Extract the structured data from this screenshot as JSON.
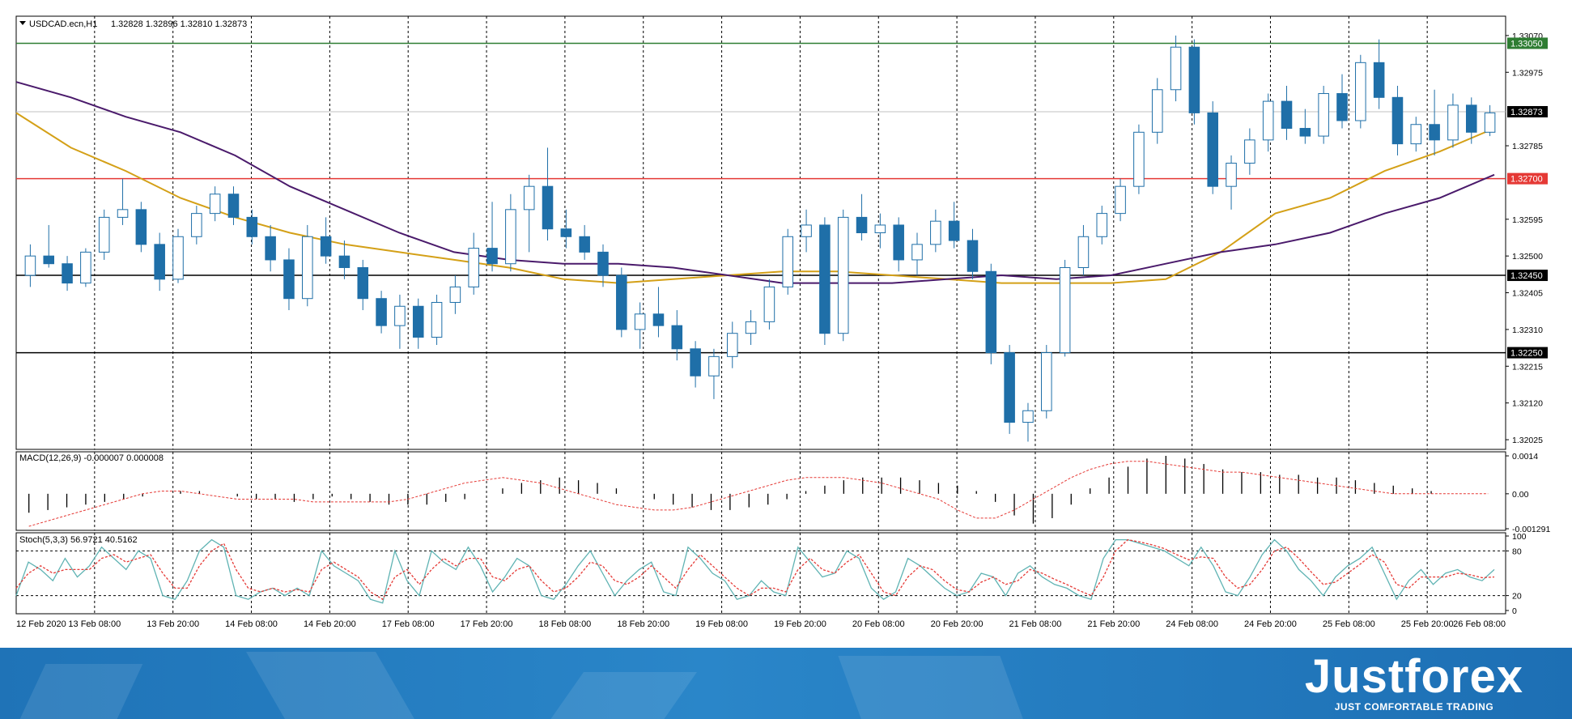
{
  "chart_data": [
    {
      "type": "candlestick",
      "title": "USDCAD.ecn,H1",
      "ohlc_text": "1.32828 1.32896 1.32810 1.32873",
      "ylim": [
        1.32,
        1.3312
      ],
      "y_ticks": [
        "1.33070",
        "1.32975",
        "1.32785",
        "1.32595",
        "1.32500",
        "1.32405",
        "1.32310",
        "1.32215",
        "1.32120",
        "1.32025"
      ],
      "x_tick_labels": [
        "12 Feb 2020",
        "13 Feb 08:00",
        "13 Feb 20:00",
        "14 Feb 08:00",
        "14 Feb 20:00",
        "17 Feb 08:00",
        "17 Feb 20:00",
        "18 Feb 08:00",
        "18 Feb 20:00",
        "19 Feb 08:00",
        "19 Feb 20:00",
        "20 Feb 08:00",
        "20 Feb 20:00",
        "21 Feb 08:00",
        "21 Feb 20:00",
        "24 Feb 08:00",
        "24 Feb 20:00",
        "25 Feb 08:00",
        "25 Feb 20:00",
        "26 Feb 08:00"
      ],
      "levels": [
        {
          "price": 1.3305,
          "label": "1.33050",
          "color": "#2e7d32"
        },
        {
          "price": 1.327,
          "label": "1.32700",
          "color": "#e53935"
        },
        {
          "price": 1.3245,
          "label": "1.32450",
          "color": "#000000"
        },
        {
          "price": 1.3225,
          "label": "1.32250",
          "color": "#000000"
        }
      ],
      "current_price": {
        "price": 1.32873,
        "label": "1.32873"
      },
      "moving_averages": [
        {
          "color": "#d4a017",
          "values": [
            1.3287,
            1.3278,
            1.3272,
            1.3265,
            1.326,
            1.3256,
            1.3253,
            1.3251,
            1.3249,
            1.3247,
            1.3244,
            1.3243,
            1.3244,
            1.3245,
            1.3246,
            1.3246,
            1.3245,
            1.3244,
            1.3243,
            1.3243,
            1.3243,
            1.3244,
            1.3251,
            1.3261,
            1.3265,
            1.3272,
            1.3277,
            1.3283
          ]
        },
        {
          "color": "#4a1a6b",
          "values": [
            1.3295,
            1.3291,
            1.3286,
            1.3282,
            1.3276,
            1.3268,
            1.3262,
            1.3256,
            1.3251,
            1.3249,
            1.3248,
            1.3248,
            1.3247,
            1.3245,
            1.3243,
            1.3243,
            1.3243,
            1.3244,
            1.3245,
            1.3244,
            1.3245,
            1.3248,
            1.3251,
            1.3253,
            1.3256,
            1.3261,
            1.3265,
            1.3271
          ]
        }
      ],
      "candles": [
        [
          1.3245,
          1.3253,
          1.3242,
          1.325
        ],
        [
          1.325,
          1.3258,
          1.3247,
          1.3248
        ],
        [
          1.3248,
          1.325,
          1.3241,
          1.3243
        ],
        [
          1.3243,
          1.3252,
          1.3242,
          1.3251
        ],
        [
          1.3251,
          1.3262,
          1.3249,
          1.326
        ],
        [
          1.326,
          1.327,
          1.3258,
          1.3262
        ],
        [
          1.3262,
          1.3264,
          1.3251,
          1.3253
        ],
        [
          1.3253,
          1.3256,
          1.3241,
          1.3244
        ],
        [
          1.3244,
          1.3257,
          1.3243,
          1.3255
        ],
        [
          1.3255,
          1.3263,
          1.3253,
          1.3261
        ],
        [
          1.3261,
          1.3268,
          1.3259,
          1.3266
        ],
        [
          1.3266,
          1.3268,
          1.3258,
          1.326
        ],
        [
          1.326,
          1.3262,
          1.3253,
          1.3255
        ],
        [
          1.3255,
          1.3258,
          1.3246,
          1.3249
        ],
        [
          1.3249,
          1.3252,
          1.3236,
          1.3239
        ],
        [
          1.3239,
          1.3258,
          1.3237,
          1.3255
        ],
        [
          1.3255,
          1.326,
          1.3248,
          1.325
        ],
        [
          1.325,
          1.3254,
          1.3244,
          1.3247
        ],
        [
          1.3247,
          1.3249,
          1.3236,
          1.3239
        ],
        [
          1.3239,
          1.3241,
          1.323,
          1.3232
        ],
        [
          1.3232,
          1.324,
          1.3226,
          1.3237
        ],
        [
          1.3237,
          1.3239,
          1.3226,
          1.3229
        ],
        [
          1.3229,
          1.324,
          1.3227,
          1.3238
        ],
        [
          1.3238,
          1.3245,
          1.3235,
          1.3242
        ],
        [
          1.3242,
          1.3256,
          1.324,
          1.3252
        ],
        [
          1.3252,
          1.3264,
          1.3246,
          1.3248
        ],
        [
          1.3248,
          1.3266,
          1.3246,
          1.3262
        ],
        [
          1.3262,
          1.3271,
          1.3251,
          1.3268
        ],
        [
          1.3268,
          1.3278,
          1.3254,
          1.3257
        ],
        [
          1.3257,
          1.3262,
          1.3252,
          1.3255
        ],
        [
          1.3255,
          1.3258,
          1.3249,
          1.3251
        ],
        [
          1.3251,
          1.3253,
          1.3242,
          1.3245
        ],
        [
          1.3245,
          1.3247,
          1.3229,
          1.3231
        ],
        [
          1.3231,
          1.3238,
          1.3226,
          1.3235
        ],
        [
          1.3235,
          1.3242,
          1.3229,
          1.3232
        ],
        [
          1.3232,
          1.3236,
          1.3223,
          1.3226
        ],
        [
          1.3226,
          1.3228,
          1.3216,
          1.3219
        ],
        [
          1.3219,
          1.3226,
          1.3213,
          1.3224
        ],
        [
          1.3224,
          1.3233,
          1.3221,
          1.323
        ],
        [
          1.323,
          1.3236,
          1.3227,
          1.3233
        ],
        [
          1.3233,
          1.3244,
          1.3231,
          1.3242
        ],
        [
          1.3242,
          1.3257,
          1.324,
          1.3255
        ],
        [
          1.3255,
          1.3262,
          1.3251,
          1.3258
        ],
        [
          1.3258,
          1.326,
          1.3227,
          1.323
        ],
        [
          1.323,
          1.3262,
          1.3228,
          1.326
        ],
        [
          1.326,
          1.3266,
          1.3254,
          1.3256
        ],
        [
          1.3256,
          1.3261,
          1.3252,
          1.3258
        ],
        [
          1.3258,
          1.326,
          1.3246,
          1.3249
        ],
        [
          1.3249,
          1.3256,
          1.3245,
          1.3253
        ],
        [
          1.3253,
          1.3262,
          1.3251,
          1.3259
        ],
        [
          1.3259,
          1.3264,
          1.3252,
          1.3254
        ],
        [
          1.3254,
          1.3257,
          1.3244,
          1.3246
        ],
        [
          1.3246,
          1.3248,
          1.3222,
          1.3225
        ],
        [
          1.3225,
          1.3227,
          1.3204,
          1.3207
        ],
        [
          1.3207,
          1.3212,
          1.3202,
          1.321
        ],
        [
          1.321,
          1.3227,
          1.3208,
          1.3225
        ],
        [
          1.3225,
          1.3249,
          1.3224,
          1.3247
        ],
        [
          1.3247,
          1.3258,
          1.3245,
          1.3255
        ],
        [
          1.3255,
          1.3263,
          1.3253,
          1.3261
        ],
        [
          1.3261,
          1.327,
          1.3259,
          1.3268
        ],
        [
          1.3268,
          1.3284,
          1.3266,
          1.3282
        ],
        [
          1.3282,
          1.3296,
          1.3279,
          1.3293
        ],
        [
          1.3293,
          1.3307,
          1.329,
          1.3304
        ],
        [
          1.3304,
          1.3306,
          1.3284,
          1.3287
        ],
        [
          1.3287,
          1.329,
          1.3266,
          1.3268
        ],
        [
          1.3268,
          1.3276,
          1.3262,
          1.3274
        ],
        [
          1.3274,
          1.3283,
          1.3271,
          1.328
        ],
        [
          1.328,
          1.3292,
          1.3277,
          1.329
        ],
        [
          1.329,
          1.3294,
          1.328,
          1.3283
        ],
        [
          1.3283,
          1.3288,
          1.3279,
          1.3281
        ],
        [
          1.3281,
          1.3294,
          1.3279,
          1.3292
        ],
        [
          1.3292,
          1.3297,
          1.3283,
          1.3285
        ],
        [
          1.3285,
          1.3302,
          1.3283,
          1.33
        ],
        [
          1.33,
          1.3306,
          1.3288,
          1.3291
        ],
        [
          1.3291,
          1.3294,
          1.3276,
          1.3279
        ],
        [
          1.3279,
          1.3286,
          1.3277,
          1.3284
        ],
        [
          1.3284,
          1.3293,
          1.3276,
          1.328
        ],
        [
          1.328,
          1.3292,
          1.3278,
          1.3289
        ],
        [
          1.3289,
          1.3291,
          1.3279,
          1.3282
        ],
        [
          1.3282,
          1.3289,
          1.3281,
          1.3287
        ]
      ]
    },
    {
      "type": "histogram",
      "title": "MACD(12,26,9) -0.000007 0.000008",
      "ylim": [
        -0.00135,
        0.00155
      ],
      "y_ticks": [
        "0.0014",
        "0.00",
        "-0.001291"
      ],
      "values": [
        -0.0007,
        -0.0006,
        -0.0005,
        -0.0004,
        -0.0003,
        -0.0002,
        -0.0001,
        0.0,
        0.0001,
        0.0001,
        0.0,
        -0.0001,
        -0.0002,
        -0.0002,
        -0.0003,
        -0.0002,
        -0.0001,
        -0.0002,
        -0.0003,
        -0.0004,
        -0.0004,
        -0.0004,
        -0.0003,
        -0.0002,
        0.0,
        0.0002,
        0.0004,
        0.0005,
        0.0006,
        0.0005,
        0.0004,
        0.0002,
        0.0,
        -0.0002,
        -0.0004,
        -0.0005,
        -0.0006,
        -0.0006,
        -0.0005,
        -0.0004,
        -0.0002,
        0.0001,
        0.0003,
        0.0005,
        0.0006,
        0.0006,
        0.0006,
        0.0005,
        0.0004,
        0.0003,
        0.0001,
        -0.0003,
        -0.0008,
        -0.0011,
        -0.0009,
        -0.0004,
        0.0002,
        0.0006,
        0.001,
        0.0013,
        0.0014,
        0.0013,
        0.0011,
        0.0009,
        0.0008,
        0.0008,
        0.0007,
        0.0007,
        0.0006,
        0.0006,
        0.0005,
        0.0004,
        0.0003,
        0.0002,
        0.0001,
        0.0,
        0.0,
        0.0
      ],
      "signal": [
        -0.0012,
        -0.001,
        -0.0008,
        -0.0006,
        -0.0004,
        -0.0002,
        0.0,
        0.0001,
        0.0001,
        0.0,
        -0.0001,
        -0.0002,
        -0.0002,
        -0.0002,
        -0.0002,
        -0.0003,
        -0.0003,
        -0.0003,
        -0.0003,
        -0.0003,
        -0.0002,
        0.0,
        0.0002,
        0.0004,
        0.0005,
        0.0006,
        0.0005,
        0.0004,
        0.0002,
        0.0,
        -0.0002,
        -0.0004,
        -0.0005,
        -0.0006,
        -0.0006,
        -0.0005,
        -0.0003,
        -0.0001,
        0.0001,
        0.0003,
        0.0005,
        0.0006,
        0.0006,
        0.0006,
        0.0005,
        0.0004,
        0.0002,
        0.0,
        -0.0002,
        -0.0006,
        -0.0009,
        -0.0009,
        -0.0006,
        -0.0002,
        0.0002,
        0.0006,
        0.0009,
        0.0011,
        0.0012,
        0.0012,
        0.0011,
        0.001,
        0.0009,
        0.0008,
        0.0008,
        0.0007,
        0.0006,
        0.0005,
        0.0004,
        0.0003,
        0.0002,
        0.0001,
        0.0,
        0.0,
        0.0,
        0.0,
        0.0,
        0.0
      ]
    },
    {
      "type": "line",
      "title": "Stoch(5,3,3) 56.9721 40.5162",
      "ylim": [
        0,
        100
      ],
      "y_ticks": [
        "100",
        "80",
        "20",
        "0"
      ],
      "levels": [
        80,
        20
      ],
      "series": [
        {
          "color": "#5fb3b3",
          "values": [
            20,
            65,
            55,
            40,
            70,
            45,
            60,
            85,
            70,
            55,
            80,
            70,
            20,
            15,
            40,
            80,
            95,
            85,
            20,
            15,
            25,
            30,
            20,
            30,
            20,
            80,
            60,
            50,
            40,
            15,
            10,
            80,
            40,
            20,
            80,
            65,
            55,
            85,
            60,
            25,
            45,
            70,
            60,
            20,
            15,
            35,
            60,
            80,
            50,
            20,
            40,
            55,
            65,
            25,
            20,
            85,
            70,
            50,
            40,
            15,
            20,
            40,
            25,
            20,
            85,
            65,
            45,
            50,
            80,
            70,
            30,
            15,
            25,
            70,
            60,
            45,
            30,
            20,
            25,
            50,
            45,
            20,
            50,
            60,
            45,
            35,
            30,
            20,
            15,
            70,
            95,
            95,
            90,
            85,
            80,
            70,
            60,
            85,
            60,
            25,
            20,
            45,
            75,
            95,
            80,
            55,
            40,
            20,
            45,
            60,
            70,
            85,
            50,
            15,
            40,
            55,
            35,
            50,
            55,
            45,
            40,
            55
          ]
        },
        {
          "color": "#e53935",
          "dashed": true,
          "values": [
            30,
            50,
            60,
            50,
            55,
            55,
            55,
            70,
            75,
            65,
            70,
            75,
            50,
            30,
            30,
            60,
            80,
            90,
            55,
            30,
            25,
            30,
            25,
            28,
            25,
            55,
            65,
            55,
            45,
            25,
            15,
            45,
            55,
            35,
            55,
            70,
            60,
            70,
            70,
            45,
            40,
            55,
            60,
            40,
            25,
            30,
            45,
            65,
            60,
            40,
            35,
            45,
            60,
            45,
            30,
            55,
            75,
            60,
            45,
            30,
            20,
            30,
            30,
            25,
            55,
            70,
            55,
            50,
            65,
            75,
            50,
            25,
            20,
            45,
            60,
            55,
            40,
            28,
            25,
            38,
            45,
            35,
            40,
            55,
            50,
            42,
            35,
            27,
            20,
            45,
            80,
            95,
            92,
            88,
            83,
            75,
            68,
            72,
            70,
            45,
            30,
            35,
            55,
            80,
            85,
            70,
            52,
            35,
            38,
            50,
            62,
            75,
            65,
            35,
            30,
            45,
            45,
            45,
            50,
            48,
            44,
            45
          ]
        }
      ]
    }
  ],
  "brand": {
    "name": "Justforex",
    "tagline": "JUST COMFORTABLE TRADING"
  }
}
